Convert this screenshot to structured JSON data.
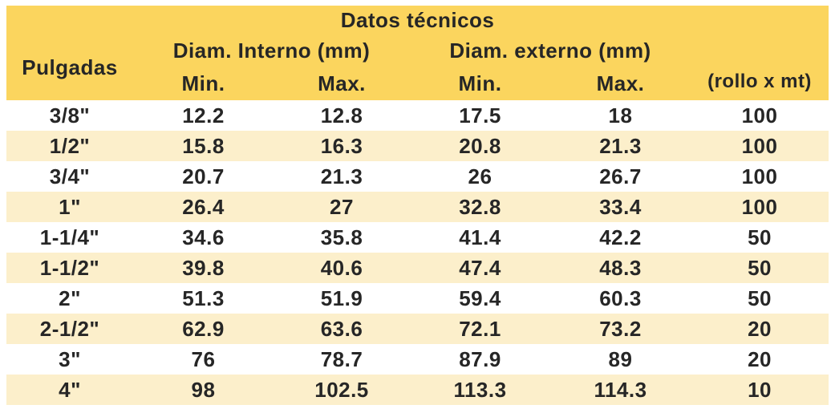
{
  "table": {
    "title": "Datos técnicos",
    "header": {
      "pulgadas": "Pulgadas",
      "interno_group": "Diam. Interno (mm)",
      "externo_group": "Diam. externo (mm)",
      "interno_min": "Min.",
      "interno_max": "Max.",
      "externo_min": "Min.",
      "externo_max": "Max.",
      "rollo": "(rollo x mt)"
    }
  },
  "rows": [
    [
      "3/8\"",
      "12.2",
      "12.8",
      "17.5",
      "18",
      "100"
    ],
    [
      "1/2\"",
      "15.8",
      "16.3",
      "20.8",
      "21.3",
      "100"
    ],
    [
      "3/4\"",
      "20.7",
      "21.3",
      "26",
      "26.7",
      "100"
    ],
    [
      "1\"",
      "26.4",
      "27",
      "32.8",
      "33.4",
      "100"
    ],
    [
      "1-1/4\"",
      "34.6",
      "35.8",
      "41.4",
      "42.2",
      "50"
    ],
    [
      "1-1/2\"",
      "39.8",
      "40.6",
      "47.4",
      "48.3",
      "50"
    ],
    [
      "2\"",
      "51.3",
      "51.9",
      "59.4",
      "60.3",
      "50"
    ],
    [
      "2-1/2\"",
      "62.9",
      "63.6",
      "72.1",
      "73.2",
      "20"
    ],
    [
      "3\"",
      "76",
      "78.7",
      "87.9",
      "89",
      "20"
    ],
    [
      "4\"",
      "98",
      "102.5",
      "113.3",
      "114.3",
      "10"
    ]
  ],
  "colors": {
    "header_bg": "#FBD55E",
    "band_bg": "#FCEFCB",
    "row_bg": "#FFFFFF",
    "text": "#262626"
  },
  "chart_data": {
    "type": "table",
    "title": "Datos técnicos",
    "columns": [
      "Pulgadas",
      "Diam. Interno (mm) Min.",
      "Diam. Interno (mm) Max.",
      "Diam. externo (mm) Min.",
      "Diam. externo (mm) Max.",
      "(rollo x mt)"
    ],
    "rows": [
      [
        "3/8\"",
        12.2,
        12.8,
        17.5,
        18,
        100
      ],
      [
        "1/2\"",
        15.8,
        16.3,
        20.8,
        21.3,
        100
      ],
      [
        "3/4\"",
        20.7,
        21.3,
        26,
        26.7,
        100
      ],
      [
        "1\"",
        26.4,
        27,
        32.8,
        33.4,
        100
      ],
      [
        "1-1/4\"",
        34.6,
        35.8,
        41.4,
        42.2,
        50
      ],
      [
        "1-1/2\"",
        39.8,
        40.6,
        47.4,
        48.3,
        50
      ],
      [
        "2\"",
        51.3,
        51.9,
        59.4,
        60.3,
        50
      ],
      [
        "2-1/2\"",
        62.9,
        63.6,
        72.1,
        73.2,
        20
      ],
      [
        "3\"",
        76,
        78.7,
        87.9,
        89,
        20
      ],
      [
        "4\"",
        98,
        102.5,
        113.3,
        114.3,
        10
      ]
    ]
  }
}
